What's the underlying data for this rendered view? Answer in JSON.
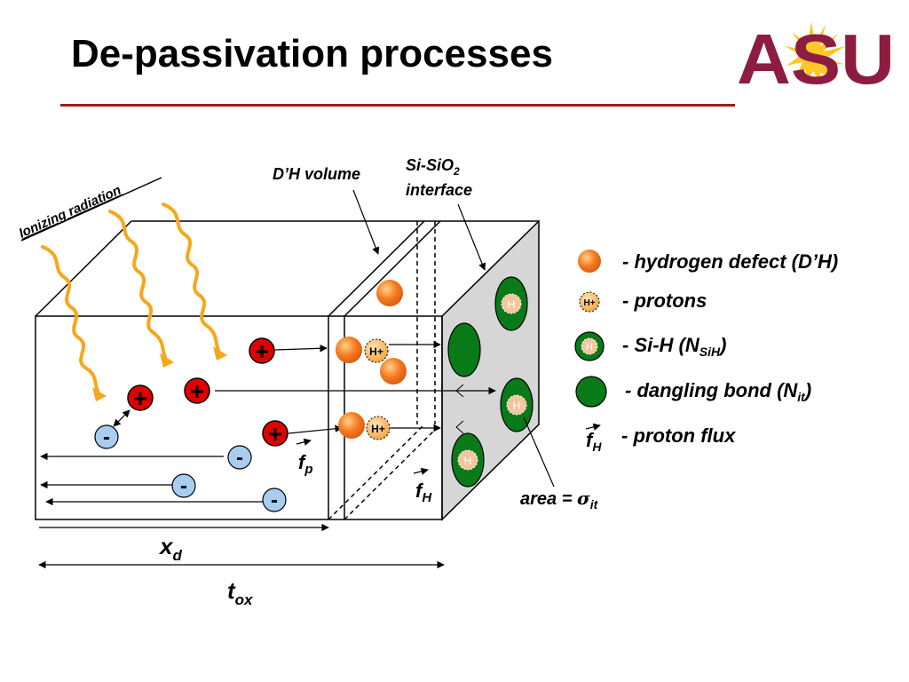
{
  "slide": {
    "title": "De-passivation processes"
  },
  "logo": {
    "text": "ASU",
    "colors": {
      "maroon": "#8c1d40",
      "gold": "#ffc627"
    }
  },
  "labels": {
    "ionizing_radiation": "Ionizing radiation",
    "dh_volume": "D’H volume",
    "interface_line1": "Si-SiO",
    "interface_sub": "2",
    "interface_line2": "interface",
    "area_text": "area = ",
    "area_sigma": "σ",
    "area_sub": "it",
    "xd_main": "x",
    "xd_sub": "d",
    "tox_main": "t",
    "tox_sub": "ox",
    "fp_main": "f",
    "fp_sub": "p",
    "fh_main": "f",
    "fh_sub": "H"
  },
  "particles": {
    "plus_sign": "+",
    "minus_sign": "-",
    "proton": "H+",
    "sih": "H"
  },
  "legend": {
    "defect": "- hydrogen defect (D’H)",
    "protons": "- protons",
    "sih_main": "- Si-H (N",
    "sih_sub": "SiH",
    "sih_close": ")",
    "dangling_main": "- dangling bond (N",
    "dangling_sub": "it",
    "dangling_close": ")",
    "flux_main": "f",
    "flux_sub": "H",
    "flux_label": "- proton flux"
  },
  "colors": {
    "hole": "#e00000",
    "electron": "#a9cdf0",
    "defect": "#f47a20",
    "proton": "#f7a848",
    "bond_green": "#087a18",
    "sih_inner": "#f3c6a0",
    "radiation": "#f6a71c",
    "interface_face": "#d6d6d6"
  }
}
